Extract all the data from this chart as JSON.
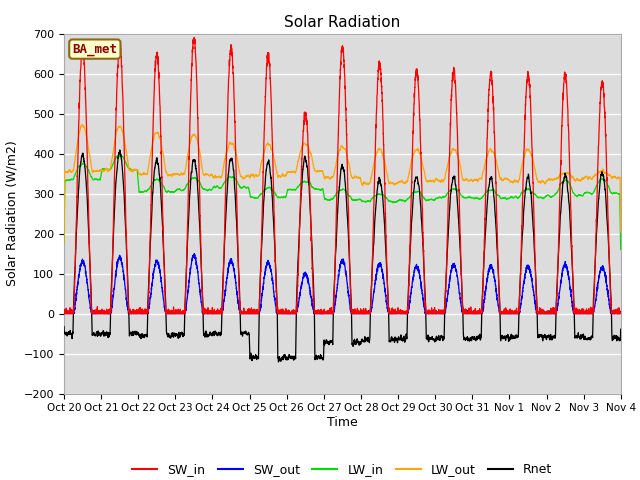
{
  "title": "Solar Radiation",
  "xlabel": "Time",
  "ylabel": "Solar Radiation (W/m2)",
  "ylim": [
    -200,
    700
  ],
  "yticks": [
    -200,
    -100,
    0,
    100,
    200,
    300,
    400,
    500,
    600,
    700
  ],
  "xlabels": [
    "Oct 20",
    "Oct 21",
    "Oct 22",
    "Oct 23",
    "Oct 24",
    "Oct 25",
    "Oct 26",
    "Oct 27",
    "Oct 28",
    "Oct 29",
    "Oct 30",
    "Oct 31",
    "Nov 1",
    "Nov 2",
    "Nov 3",
    "Nov 4"
  ],
  "colors": {
    "SW_in": "#FF0000",
    "SW_out": "#0000FF",
    "LW_in": "#00DD00",
    "LW_out": "#FFA500",
    "Rnet": "#000000"
  },
  "legend_label": "BA_met",
  "legend_box_color": "#FFFFCC",
  "legend_box_edge": "#8B6914",
  "plot_bg": "#DCDCDC",
  "fig_bg": "#FFFFFF",
  "grid_color": "#FFFFFF",
  "n_days": 15,
  "ppd": 288,
  "SW_in_peaks": [
    665,
    670,
    648,
    688,
    663,
    648,
    500,
    665,
    625,
    607,
    608,
    600,
    600,
    595,
    580
  ],
  "SW_out_peaks": [
    130,
    140,
    130,
    145,
    132,
    128,
    100,
    132,
    125,
    118,
    122,
    118,
    118,
    122,
    115
  ],
  "LW_in_base": [
    335,
    360,
    305,
    310,
    315,
    290,
    310,
    285,
    280,
    283,
    290,
    288,
    290,
    295,
    300
  ],
  "LW_in_day_add": [
    40,
    35,
    30,
    30,
    28,
    25,
    20,
    25,
    20,
    22,
    22,
    22,
    20,
    40,
    35
  ],
  "LW_out_night": [
    355,
    358,
    348,
    348,
    342,
    345,
    355,
    340,
    325,
    330,
    332,
    335,
    330,
    335,
    340
  ],
  "LW_out_day_peak": [
    470,
    468,
    452,
    448,
    428,
    425,
    425,
    418,
    410,
    410,
    412,
    410,
    410,
    352,
    355
  ],
  "Rnet_night": [
    -50,
    -52,
    -55,
    -52,
    -50,
    -52,
    -55,
    -72,
    -65,
    -62,
    -62,
    -60,
    -58,
    -58,
    -62
  ],
  "Rnet_day_peak": [
    400,
    405,
    385,
    388,
    388,
    375,
    390,
    370,
    335,
    345,
    342,
    338,
    340,
    348,
    350
  ],
  "special_night_days": [
    5,
    6
  ],
  "special_night_val": -110
}
